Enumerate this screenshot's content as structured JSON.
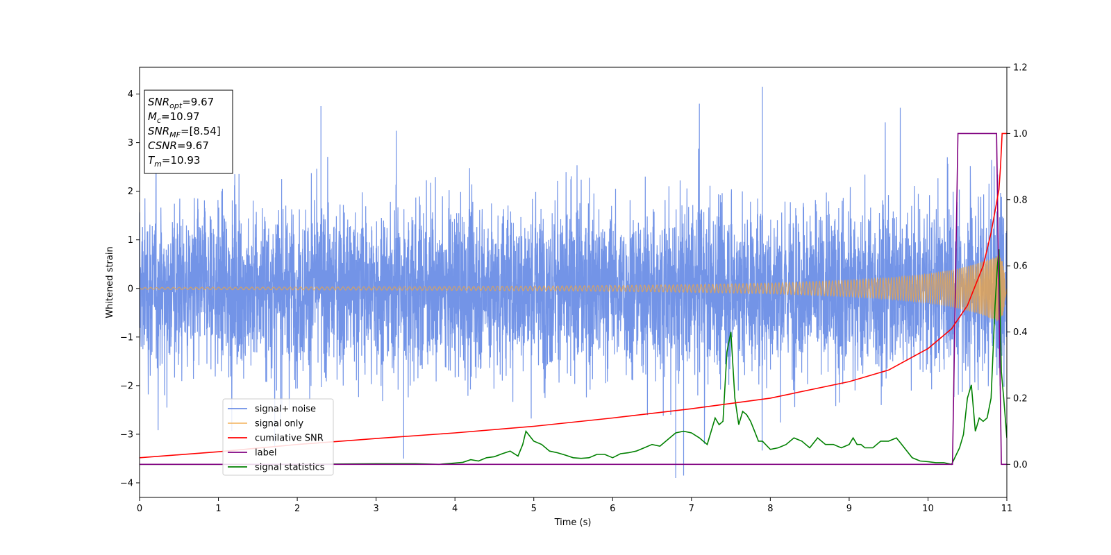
{
  "chart_data": {
    "type": "line",
    "title": "",
    "xlabel": "Time (s)",
    "ylabel": "Whitened strain",
    "y2label": "",
    "xlim": [
      0,
      11
    ],
    "ylim_left": [
      -4.3,
      4.55
    ],
    "ylim_right": [
      -0.1,
      1.2
    ],
    "xticks": [
      "0",
      "1",
      "2",
      "3",
      "4",
      "5",
      "6",
      "7",
      "8",
      "9",
      "10",
      "11"
    ],
    "yticks_left": [
      "−4",
      "−3",
      "−2",
      "−1",
      "0",
      "1",
      "2",
      "3",
      "4"
    ],
    "yticks_right": [
      "0.0",
      "0.2",
      "0.4",
      "0.6",
      "0.8",
      "1.0",
      "1.2"
    ],
    "grid": false,
    "legend_position": "lower-left",
    "colors": {
      "signal_noise": "#6c8ee6",
      "signal_only": "#f0a640",
      "cumulative_snr": "#ff0000",
      "label": "#800080",
      "signal_statistics": "#008000"
    },
    "info_box": {
      "lines": [
        {
          "sym": "SNR",
          "sub": "opt",
          "value": "=9.67"
        },
        {
          "sym": "M",
          "sub": "c",
          "value": "=10.97"
        },
        {
          "sym": "SNR",
          "sub": "MF",
          "value": "=[8.54]"
        },
        {
          "sym": "CSNR",
          "sub": "",
          "value": "=9.67"
        },
        {
          "sym": "T",
          "sub": "m",
          "value": "=10.93"
        }
      ]
    },
    "series": [
      {
        "name": "signal+ noise",
        "axis": "left",
        "description_of_noise": "random whitened noise, amplitude roughly ±2 with spikes up to ~4.2",
        "notable_peaks": [
          {
            "x": 2.3,
            "y": 3.75
          },
          {
            "x": 7.1,
            "y": 3.8
          },
          {
            "x": 7.9,
            "y": 4.15
          },
          {
            "x": 6.8,
            "y": -3.9
          },
          {
            "x": 6.9,
            "y": -3.85
          },
          {
            "x": 3.35,
            "y": -3.5
          }
        ]
      },
      {
        "name": "signal only",
        "axis": "left",
        "envelope": [
          [
            0,
            0.02
          ],
          [
            2,
            0.03
          ],
          [
            4,
            0.04
          ],
          [
            6,
            0.06
          ],
          [
            7,
            0.08
          ],
          [
            8,
            0.11
          ],
          [
            9,
            0.17
          ],
          [
            9.5,
            0.22
          ],
          [
            10,
            0.3
          ],
          [
            10.3,
            0.38
          ],
          [
            10.6,
            0.5
          ],
          [
            10.8,
            0.62
          ],
          [
            10.9,
            0.7
          ],
          [
            10.95,
            0.55
          ],
          [
            11,
            0.0
          ]
        ]
      },
      {
        "name": "cumilative SNR",
        "axis": "right",
        "x": [
          0,
          1,
          2,
          3,
          4,
          5,
          6,
          7,
          8,
          9,
          9.5,
          10,
          10.3,
          10.5,
          10.7,
          10.8,
          10.9,
          10.92,
          10.94,
          11
        ],
        "y": [
          0.02,
          0.038,
          0.06,
          0.078,
          0.095,
          0.115,
          0.14,
          0.168,
          0.2,
          0.25,
          0.285,
          0.35,
          0.41,
          0.48,
          0.6,
          0.7,
          0.83,
          0.9,
          1.0,
          1.0
        ]
      },
      {
        "name": "label",
        "axis": "right",
        "x": [
          0,
          10.31,
          10.38,
          10.87,
          10.93,
          11
        ],
        "y": [
          0,
          0,
          1,
          1,
          0,
          0
        ]
      },
      {
        "name": "signal statistics",
        "axis": "right",
        "x": [
          0,
          0.5,
          1,
          2,
          3,
          3.5,
          3.8,
          4.0,
          4.1,
          4.2,
          4.3,
          4.4,
          4.5,
          4.6,
          4.7,
          4.8,
          4.86,
          4.9,
          5.0,
          5.1,
          5.2,
          5.3,
          5.4,
          5.5,
          5.6,
          5.7,
          5.8,
          5.9,
          6.0,
          6.1,
          6.2,
          6.3,
          6.4,
          6.5,
          6.6,
          6.7,
          6.8,
          6.9,
          7.0,
          7.1,
          7.2,
          7.3,
          7.35,
          7.4,
          7.45,
          7.5,
          7.55,
          7.6,
          7.65,
          7.7,
          7.75,
          7.8,
          7.85,
          7.9,
          8.0,
          8.1,
          8.2,
          8.3,
          8.4,
          8.5,
          8.6,
          8.7,
          8.8,
          8.9,
          9.0,
          9.05,
          9.1,
          9.15,
          9.2,
          9.3,
          9.4,
          9.5,
          9.6,
          9.65,
          9.7,
          9.8,
          9.9,
          10.0,
          10.1,
          10.2,
          10.3,
          10.35,
          10.4,
          10.45,
          10.5,
          10.55,
          10.6,
          10.65,
          10.7,
          10.75,
          10.8,
          10.85,
          10.88,
          10.9,
          10.93,
          10.96,
          11
        ],
        "y": [
          0,
          0,
          0,
          0,
          0.002,
          0.002,
          0.0,
          0.004,
          0.006,
          0.014,
          0.01,
          0.02,
          0.023,
          0.032,
          0.04,
          0.025,
          0.06,
          0.1,
          0.07,
          0.06,
          0.04,
          0.035,
          0.028,
          0.02,
          0.018,
          0.02,
          0.03,
          0.03,
          0.02,
          0.032,
          0.035,
          0.04,
          0.05,
          0.06,
          0.055,
          0.075,
          0.095,
          0.1,
          0.095,
          0.08,
          0.06,
          0.14,
          0.12,
          0.13,
          0.34,
          0.4,
          0.2,
          0.12,
          0.16,
          0.15,
          0.13,
          0.1,
          0.07,
          0.07,
          0.045,
          0.05,
          0.06,
          0.08,
          0.07,
          0.05,
          0.08,
          0.06,
          0.06,
          0.05,
          0.06,
          0.08,
          0.06,
          0.06,
          0.05,
          0.05,
          0.07,
          0.07,
          0.08,
          0.065,
          0.05,
          0.02,
          0.01,
          0.008,
          0.005,
          0.005,
          0.0,
          0.025,
          0.05,
          0.09,
          0.2,
          0.24,
          0.1,
          0.14,
          0.13,
          0.14,
          0.2,
          0.48,
          0.6,
          0.65,
          0.28,
          0.2,
          0.08
        ]
      }
    ]
  },
  "legend": {
    "items": [
      "signal+ noise",
      "signal only",
      "cumilative SNR",
      "label",
      "signal statistics"
    ]
  }
}
